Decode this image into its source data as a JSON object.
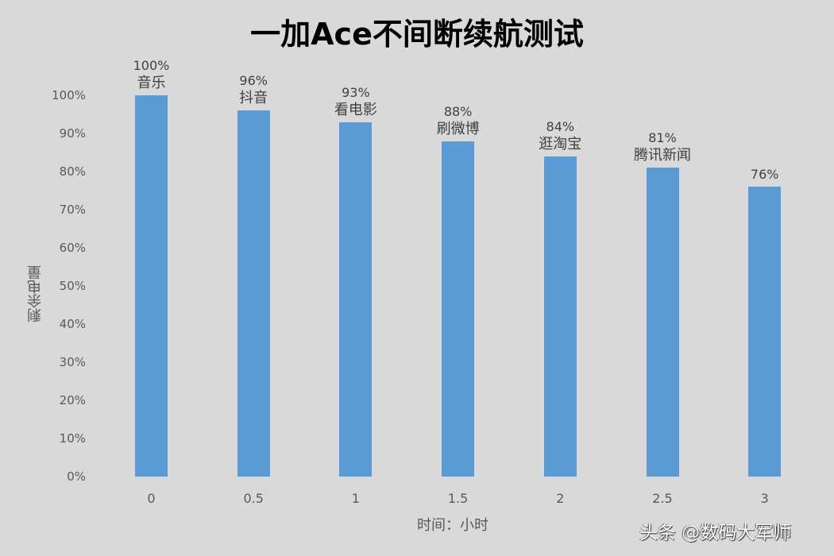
{
  "chart_data": {
    "type": "bar",
    "title": "一加Ace不间断续航测试",
    "xlabel": "时间：小时",
    "ylabel": "剩余电量",
    "categories": [
      "0",
      "0.5",
      "1",
      "1.5",
      "2",
      "2.5",
      "3"
    ],
    "values": [
      100,
      96,
      93,
      88,
      84,
      81,
      76
    ],
    "value_labels": [
      "100%",
      "96%",
      "93%",
      "88%",
      "84%",
      "81%",
      "76%"
    ],
    "annotations": [
      "音乐",
      "抖音",
      "看电影",
      "刷微博",
      "逛淘宝",
      "腾讯新闻",
      ""
    ],
    "ylim": [
      0,
      100
    ],
    "yticks": [
      "0%",
      "10%",
      "20%",
      "30%",
      "40%",
      "50%",
      "60%",
      "70%",
      "80%",
      "90%",
      "100%"
    ],
    "grid": false,
    "legend": "none",
    "bar_color": "#5b9bd5"
  },
  "watermark": "头条 @数码大军师"
}
